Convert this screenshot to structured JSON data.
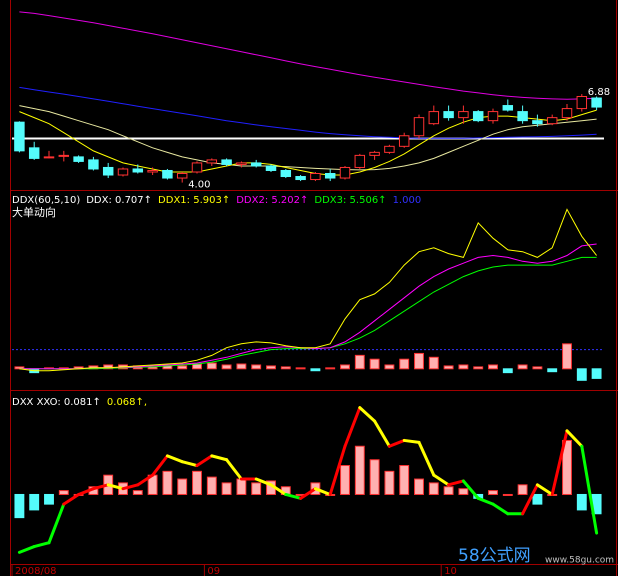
{
  "chart_data": [
    {
      "type": "candlestick",
      "ylim": [
        3.77,
        9.73
      ],
      "up_color": "#ff3232",
      "down_color": "#54fcfc",
      "open": [
        5.95,
        5.1,
        4.8,
        4.82,
        4.8,
        4.7,
        4.45,
        4.2,
        4.4,
        4.3,
        4.35,
        4.1,
        4.3,
        4.6,
        4.7,
        4.55,
        4.6,
        4.5,
        4.35,
        4.15,
        4.05,
        4.25,
        4.1,
        4.45,
        4.85,
        4.95,
        5.15,
        5.5,
        5.9,
        6.3,
        6.1,
        6.3,
        6.0,
        6.5,
        6.3,
        6.0,
        5.9,
        6.1,
        6.4,
        6.75
      ],
      "high": [
        5.98,
        5.3,
        5.0,
        5.0,
        4.85,
        4.8,
        4.6,
        4.45,
        4.55,
        4.45,
        4.4,
        4.3,
        4.65,
        4.75,
        4.75,
        4.65,
        4.7,
        4.55,
        4.4,
        4.2,
        4.3,
        4.4,
        4.5,
        4.9,
        5.0,
        5.2,
        5.6,
        6.2,
        6.5,
        6.5,
        6.5,
        6.35,
        6.4,
        6.7,
        6.5,
        6.2,
        6.2,
        6.55,
        6.88,
        6.8
      ],
      "low": [
        4.95,
        4.7,
        4.75,
        4.65,
        4.6,
        4.35,
        4.1,
        4.15,
        4.25,
        4.2,
        4.05,
        3.95,
        4.25,
        4.5,
        4.5,
        4.45,
        4.45,
        4.3,
        4.1,
        4.0,
        4.0,
        4.0,
        4.05,
        4.4,
        4.7,
        4.9,
        5.1,
        5.4,
        5.85,
        6.0,
        5.9,
        5.95,
        5.9,
        6.3,
        5.9,
        5.8,
        5.85,
        6.0,
        6.3,
        6.35
      ],
      "close": [
        5.0,
        4.75,
        4.8,
        4.85,
        4.65,
        4.4,
        4.2,
        4.4,
        4.3,
        4.35,
        4.1,
        4.25,
        4.6,
        4.7,
        4.55,
        4.6,
        4.5,
        4.35,
        4.15,
        4.05,
        4.25,
        4.1,
        4.45,
        4.85,
        4.95,
        5.15,
        5.5,
        6.1,
        6.3,
        6.1,
        6.3,
        6.0,
        6.3,
        6.35,
        6.0,
        5.9,
        6.1,
        6.4,
        6.8,
        6.45
      ],
      "series": [
        {
          "color": "#e000e0",
          "values": [
            9.6,
            9.55,
            9.48,
            9.4,
            9.32,
            9.24,
            9.15,
            9.06,
            8.97,
            8.88,
            8.78,
            8.68,
            8.58,
            8.48,
            8.38,
            8.28,
            8.18,
            8.08,
            7.98,
            7.88,
            7.79,
            7.7,
            7.61,
            7.52,
            7.44,
            7.36,
            7.28,
            7.2,
            7.12,
            7.05,
            6.98,
            6.92,
            6.86,
            6.81,
            6.77,
            6.74,
            6.72,
            6.71,
            6.72,
            6.74
          ]
        },
        {
          "color": "#2020ff",
          "values": [
            7.1,
            7.02,
            6.95,
            6.88,
            6.8,
            6.72,
            6.64,
            6.56,
            6.48,
            6.4,
            6.32,
            6.24,
            6.16,
            6.08,
            6.0,
            5.93,
            5.86,
            5.8,
            5.74,
            5.68,
            5.62,
            5.57,
            5.53,
            5.5,
            5.47,
            5.45,
            5.43,
            5.42,
            5.42,
            5.42,
            5.42,
            5.43,
            5.44,
            5.45,
            5.46,
            5.47,
            5.48,
            5.5,
            5.52,
            5.55
          ]
        },
        {
          "color": "#e8e8a0",
          "values": [
            6.5,
            6.4,
            6.3,
            6.15,
            6.0,
            5.85,
            5.7,
            5.5,
            5.3,
            5.1,
            4.95,
            4.8,
            4.7,
            4.6,
            4.55,
            4.5,
            4.5,
            4.5,
            4.48,
            4.45,
            4.42,
            4.4,
            4.38,
            4.37,
            4.38,
            4.42,
            4.5,
            4.6,
            4.75,
            4.95,
            5.15,
            5.35,
            5.55,
            5.7,
            5.8,
            5.85,
            5.9,
            5.95,
            6.0,
            6.05
          ]
        },
        {
          "color": "#ffff00",
          "values": [
            6.3,
            6.1,
            5.9,
            5.6,
            5.3,
            5.0,
            4.8,
            4.6,
            4.5,
            4.4,
            4.3,
            4.3,
            4.3,
            4.4,
            4.5,
            4.6,
            4.6,
            4.55,
            4.45,
            4.35,
            4.25,
            4.2,
            4.2,
            4.3,
            4.45,
            4.65,
            4.9,
            5.2,
            5.5,
            5.75,
            5.95,
            6.1,
            6.15,
            6.15,
            6.1,
            6.05,
            6.0,
            6.05,
            6.2,
            6.35
          ]
        }
      ],
      "hline": {
        "value": 5.41,
        "color": "#ffffff"
      },
      "annotations": [
        "6.88",
        "4.00"
      ]
    },
    {
      "type": "combo",
      "ylim": [
        -1,
        9
      ],
      "legend": [
        {
          "text": "DDX(60,5,10)",
          "color": "#ffffff"
        },
        {
          "text": "DDX: 0.707↑",
          "color": "#ffffff"
        },
        {
          "text": "DDX1: 5.903↑",
          "color": "#ffff00"
        },
        {
          "text": "DDX2: 5.202↑",
          "color": "#ff00ff"
        },
        {
          "text": "DDX3: 5.506↑",
          "color": "#00ff00"
        },
        {
          "text": "1.000",
          "color": "#3030ff"
        }
      ],
      "subtitle": "大单动向",
      "hline": {
        "value": 1,
        "color": "#3030ff"
      },
      "bars": {
        "up_color": "#ff3232",
        "down_color": "#54fcfc",
        "values": [
          0.1,
          -0.2,
          0.05,
          0.05,
          0.1,
          0.15,
          0.2,
          0.2,
          0.15,
          0.1,
          0.2,
          0.15,
          0.25,
          0.3,
          0.2,
          0.25,
          0.2,
          0.15,
          0.1,
          0.05,
          -0.1,
          0.05,
          0.2,
          0.7,
          0.5,
          0.2,
          0.5,
          0.8,
          0.6,
          0.15,
          0.2,
          0.1,
          0.2,
          -0.2,
          0.2,
          0.1,
          -0.15,
          1.3,
          -0.6,
          -0.5
        ]
      },
      "series": [
        {
          "color": "#00ff00",
          "values": [
            0,
            0,
            0,
            0,
            0,
            0,
            0.02,
            0.05,
            0.08,
            0.1,
            0.15,
            0.2,
            0.25,
            0.35,
            0.5,
            0.7,
            0.85,
            1.0,
            1.05,
            1.05,
            1.05,
            1.1,
            1.3,
            1.6,
            2.0,
            2.5,
            3.0,
            3.5,
            4.0,
            4.4,
            4.8,
            5.1,
            5.3,
            5.4,
            5.4,
            5.4,
            5.4,
            5.6,
            5.8,
            5.8
          ]
        },
        {
          "color": "#ff00ff",
          "values": [
            0,
            0,
            0,
            0,
            0,
            0.05,
            0.05,
            0.08,
            0.1,
            0.15,
            0.2,
            0.25,
            0.3,
            0.45,
            0.6,
            0.8,
            1.0,
            1.1,
            1.15,
            1.1,
            1.05,
            1.1,
            1.4,
            1.9,
            2.5,
            3.1,
            3.7,
            4.3,
            4.8,
            5.2,
            5.5,
            5.8,
            5.9,
            5.8,
            5.6,
            5.5,
            5.6,
            5.9,
            6.4,
            6.5
          ]
        },
        {
          "color": "#ffff00",
          "values": [
            0,
            -0.1,
            -0.1,
            -0.05,
            0,
            0.05,
            0.05,
            0.1,
            0.15,
            0.2,
            0.25,
            0.3,
            0.45,
            0.7,
            1.1,
            1.3,
            1.4,
            1.35,
            1.2,
            1.1,
            1.1,
            1.3,
            2.6,
            3.6,
            3.9,
            4.5,
            5.4,
            6.1,
            6.3,
            6.0,
            5.8,
            7.6,
            6.8,
            6.2,
            6.1,
            5.8,
            6.3,
            8.3,
            6.9,
            5.9
          ]
        }
      ]
    },
    {
      "type": "combo",
      "ylim": [
        -0.35,
        0.5
      ],
      "legend": [
        {
          "text": "DXX XXO: 0.081↑",
          "color": "#ffffff"
        },
        {
          "text": "0.068↑,",
          "color": "#ffff00"
        }
      ],
      "categories": [
        "2008/08",
        null,
        null,
        null,
        null,
        null,
        null,
        null,
        null,
        null,
        null,
        null,
        null,
        "09",
        null,
        null,
        null,
        null,
        null,
        null,
        null,
        null,
        null,
        null,
        null,
        null,
        null,
        null,
        null,
        "10",
        null,
        null,
        null,
        null,
        null,
        null,
        null,
        null,
        null,
        null
      ],
      "bars": {
        "up_color": "#ff3232",
        "down_color": "#54fcfc",
        "values": [
          -0.12,
          -0.08,
          -0.05,
          0.02,
          0.0,
          0.04,
          0.1,
          0.06,
          0.02,
          0.1,
          0.12,
          0.08,
          0.12,
          0.09,
          0.06,
          0.08,
          0.06,
          0.07,
          0.04,
          0.0,
          0.06,
          0.0,
          0.15,
          0.25,
          0.18,
          0.12,
          0.15,
          0.08,
          0.06,
          0.04,
          0.03,
          -0.02,
          0.02,
          0.0,
          0.05,
          -0.05,
          0.0,
          0.28,
          -0.08,
          -0.1
        ]
      },
      "series": [
        {
          "colors": {
            "up": "#ff0000",
            "down": "#ffff00",
            "negative": "#00ff00"
          },
          "values": [
            -0.3,
            -0.27,
            -0.25,
            -0.05,
            0.0,
            0.03,
            0.05,
            0.03,
            0.05,
            0.1,
            0.2,
            0.17,
            0.15,
            0.2,
            0.18,
            0.08,
            0.08,
            0.05,
            0.0,
            -0.02,
            0.03,
            0.0,
            0.25,
            0.45,
            0.38,
            0.25,
            0.28,
            0.27,
            0.1,
            0.05,
            0.07,
            -0.02,
            -0.05,
            -0.1,
            -0.1,
            0.05,
            0.0,
            0.33,
            0.25,
            -0.2
          ]
        }
      ]
    }
  ],
  "watermark": {
    "logo": "58公式网",
    "url": "www.58gu.com"
  }
}
